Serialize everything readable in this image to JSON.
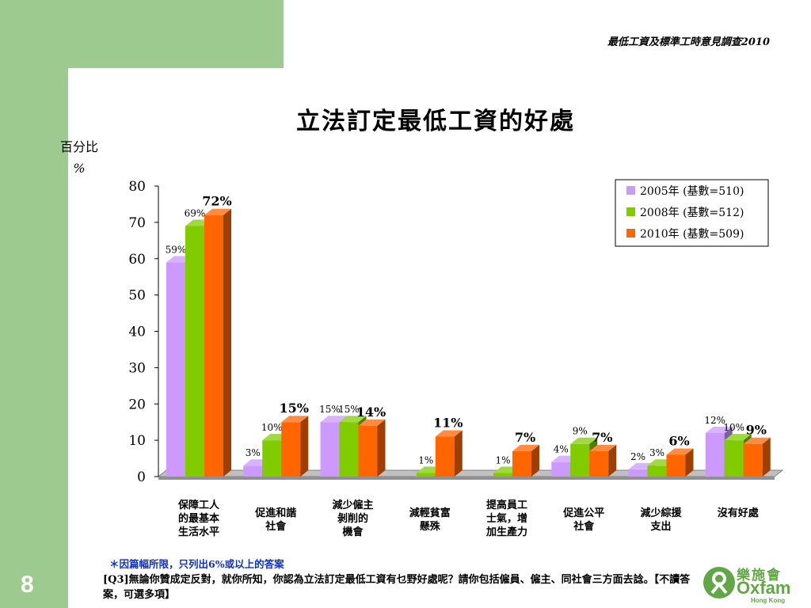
{
  "header": {
    "survey_title": "最低工資及標準工時意見調查2010"
  },
  "page_number": "8",
  "chart_data": {
    "type": "bar",
    "title": "立法訂定最低工資的好處",
    "ylabel_line1": "百分比",
    "ylabel_line2": "%",
    "ylim": [
      0,
      80
    ],
    "yticks": [
      "0",
      "10",
      "20",
      "30",
      "40",
      "50",
      "60",
      "70",
      "80"
    ],
    "categories": [
      [
        "保障工人",
        "的最基本",
        "生活水平"
      ],
      [
        "促進和諧",
        "社會"
      ],
      [
        "減少僱主",
        "剝削的",
        "機會"
      ],
      [
        "減輕貧富",
        "懸殊"
      ],
      [
        "提高員工",
        "士氣，增",
        "加生產力"
      ],
      [
        "促進公平",
        "社會"
      ],
      [
        "減少綜援",
        "支出"
      ],
      [
        "沒有好處"
      ]
    ],
    "series": [
      {
        "name": "2005年 (基數=510)",
        "color": "#cc99ff",
        "values": [
          59,
          3,
          15,
          null,
          null,
          4,
          2,
          12
        ],
        "labels": [
          "59%",
          "3%",
          "15%",
          "",
          "",
          "4%",
          "2%",
          "12%"
        ]
      },
      {
        "name": "2008年 (基數=512)",
        "color": "#80cc00",
        "values": [
          69,
          10,
          15,
          1,
          1,
          9,
          3,
          10
        ],
        "labels": [
          "69%",
          "10%",
          "15%",
          "1%",
          "1%",
          "9%",
          "3%",
          "10%"
        ]
      },
      {
        "name": "2010年 (基數=509)",
        "color": "#ff6600",
        "values": [
          72,
          15,
          14,
          11,
          7,
          7,
          6,
          9
        ],
        "labels": [
          "72%",
          "15%",
          "14%",
          "11%",
          "7%",
          "7%",
          "6%",
          "9%"
        ]
      }
    ],
    "legend_position": "top-right",
    "grid": false
  },
  "footnote": "＊因篇幅所限，只列出6%或以上的答案",
  "question": "[Q3]無論你贊成定反對，就你所知，你認為立法訂定最低工資有乜野好處呢？請你包括僱員、僱主、同社會三方面去諗。【不讀答案，可選多項】",
  "logo": {
    "chinese": "樂施會",
    "english": "Oxfam",
    "sub": "Hong Kong"
  }
}
